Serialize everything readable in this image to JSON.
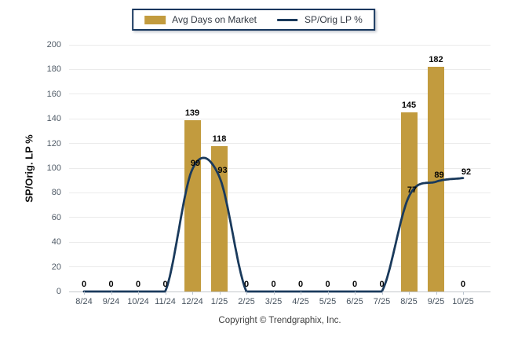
{
  "legend": {
    "bar_label": "Avg Days on Market",
    "line_label": "SP/Orig LP %"
  },
  "footer": "Copyright © Trendgraphix, Inc.",
  "colors": {
    "bar": "#c29b3e",
    "line": "#1a3a5c",
    "grid": "#ebebeb",
    "baseline": "#c4c8cc",
    "axis_text": "#4f5a66",
    "value_text": "#050505",
    "legend_border": "#17375e"
  },
  "chart_data": {
    "type": "bar+line",
    "title": "",
    "ylabel": "SP/Orig. LP %",
    "xlabel": "",
    "ylim": [
      0,
      200
    ],
    "y_tick_step": 20,
    "grid": "horizontal",
    "legend_position": "top-center",
    "categories": [
      "8/24",
      "9/24",
      "10/24",
      "11/24",
      "12/24",
      "1/25",
      "2/25",
      "3/25",
      "4/25",
      "5/25",
      "6/25",
      "7/25",
      "8/25",
      "9/25",
      "10/25"
    ],
    "series": [
      {
        "name": "Avg Days on Market",
        "type": "bar",
        "values": [
          0,
          0,
          0,
          0,
          139,
          118,
          0,
          0,
          0,
          0,
          0,
          0,
          145,
          182,
          0
        ]
      },
      {
        "name": "SP/Orig LP %",
        "type": "line",
        "smooth": true,
        "values": [
          0,
          0,
          0,
          0,
          99,
          93,
          0,
          0,
          0,
          0,
          0,
          0,
          77,
          89,
          92
        ]
      }
    ]
  }
}
